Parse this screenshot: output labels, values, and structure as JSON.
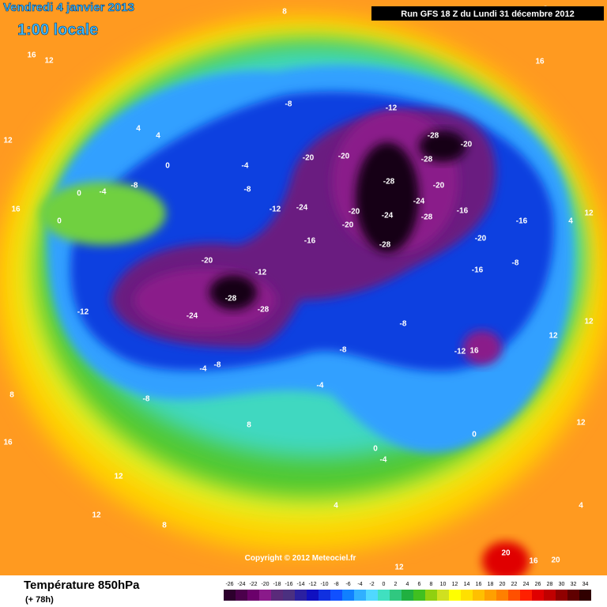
{
  "header": {
    "date": "Vendredi 4 janvier 2013",
    "time": "1:00 locale",
    "run": "Run GFS 18 Z du Lundi 31 décembre 2012"
  },
  "copyright": "Copyright © 2012 Meteociel.fr",
  "footer": {
    "title": "Température 850hPa",
    "lead": "(+ 78h)"
  },
  "colorbar": {
    "ticks": [
      -26,
      -24,
      -22,
      -20,
      -18,
      -16,
      -14,
      -12,
      -10,
      -8,
      -6,
      -4,
      -2,
      0,
      2,
      4,
      6,
      8,
      10,
      12,
      14,
      16,
      18,
      20,
      22,
      24,
      26,
      28,
      30,
      32,
      34
    ],
    "colors": [
      "#2d002d",
      "#4b004b",
      "#6b006b",
      "#8a1a8a",
      "#5a2a7a",
      "#4b3080",
      "#2b20a0",
      "#1010c0",
      "#1030e0",
      "#1050ff",
      "#1080ff",
      "#30b0ff",
      "#50d8ff",
      "#40e0c0",
      "#30c880",
      "#20b040",
      "#40c020",
      "#90d010",
      "#d0e020",
      "#ffff00",
      "#ffe000",
      "#ffc000",
      "#ffa000",
      "#ff8000",
      "#ff5000",
      "#ff2000",
      "#e00000",
      "#c00000",
      "#900000",
      "#600000",
      "#300000"
    ]
  },
  "contour_labels": [
    -28,
    -20,
    -28,
    -20,
    -20,
    -12,
    -8,
    -28,
    -24,
    -24,
    -28,
    -20,
    -20,
    -28,
    -16,
    -24,
    -12,
    -20,
    -16,
    -16,
    -16,
    -8,
    -20,
    -28,
    -24,
    -28,
    -20,
    -12,
    -12,
    -8,
    -4,
    -8,
    -4,
    -8,
    -8,
    -12,
    16,
    -4,
    0,
    0,
    4,
    8,
    8,
    12,
    12,
    16,
    12,
    16,
    20,
    20,
    4,
    4,
    0,
    -4,
    0,
    0,
    -8,
    -4,
    -8,
    12,
    12,
    16,
    16,
    12,
    8,
    8,
    12,
    16,
    4,
    8,
    12,
    12,
    4
  ]
}
